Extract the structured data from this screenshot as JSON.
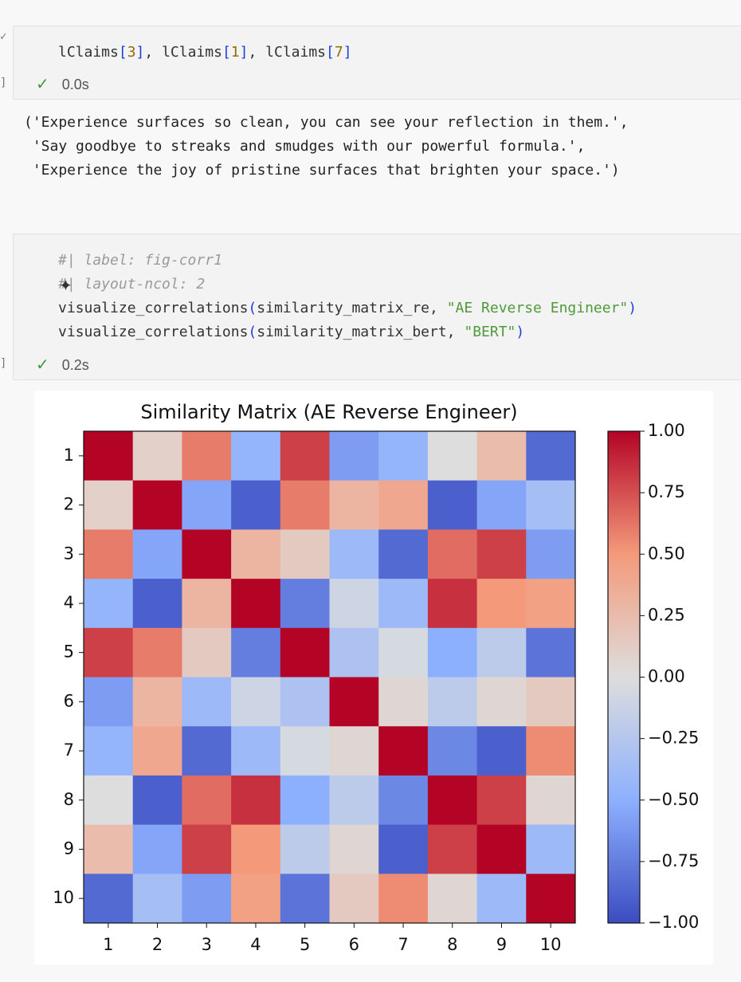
{
  "cells": [
    {
      "lines": [
        [
          {
            "text": "lClaims",
            "color": "#333333"
          },
          {
            "text": "[",
            "color": "#1f3fd8"
          },
          {
            "text": "3",
            "color": "#946c00"
          },
          {
            "text": "]",
            "color": "#1f3fd8"
          },
          {
            "text": ", lClaims",
            "color": "#333333"
          },
          {
            "text": "[",
            "color": "#1f3fd8"
          },
          {
            "text": "1",
            "color": "#946c00"
          },
          {
            "text": "]",
            "color": "#1f3fd8"
          },
          {
            "text": ", lClaims",
            "color": "#333333"
          },
          {
            "text": "[",
            "color": "#1f3fd8"
          },
          {
            "text": "7",
            "color": "#946c00"
          },
          {
            "text": "]",
            "color": "#1f3fd8"
          }
        ]
      ],
      "time": "0.0s",
      "output": [
        "('Experience surfaces so clean, you can see your reflection in them.',",
        " 'Say goodbye to streaks and smudges with our powerful formula.',",
        " 'Experience the joy of pristine surfaces that brighten your space.')"
      ]
    },
    {
      "lines": [
        [
          {
            "text": "#| label: fig-corr1",
            "color": "#9a9a9a",
            "style": "italic"
          }
        ],
        [
          {
            "text": "#| layout-ncol: 2",
            "color": "#9a9a9a",
            "style": "italic"
          }
        ],
        [
          {
            "text": "visualize_correlations",
            "color": "#333333"
          },
          {
            "text": "(",
            "color": "#1f3fd8"
          },
          {
            "text": "similarity_matrix_re, ",
            "color": "#333333"
          },
          {
            "text": "\"AE Reverse Engineer\"",
            "color": "#4f9a3a"
          },
          {
            "text": ")",
            "color": "#1f3fd8"
          }
        ],
        [
          {
            "text": "visualize_correlations",
            "color": "#333333"
          },
          {
            "text": "(",
            "color": "#1f3fd8"
          },
          {
            "text": "similarity_matrix_bert, ",
            "color": "#333333"
          },
          {
            "text": "\"BERT\"",
            "color": "#4f9a3a"
          },
          {
            "text": ")",
            "color": "#1f3fd8"
          }
        ]
      ],
      "time": "0.2s"
    }
  ],
  "chart_data": {
    "type": "heatmap",
    "title": "Similarity Matrix (AE Reverse Engineer)",
    "colormap": "coolwarm",
    "xticks": [
      1,
      2,
      3,
      4,
      5,
      6,
      7,
      8,
      9,
      10
    ],
    "yticks": [
      1,
      2,
      3,
      4,
      5,
      6,
      7,
      8,
      9,
      10
    ],
    "values": [
      [
        1,
        0.1,
        0.6,
        -0.45,
        0.8,
        -0.6,
        -0.45,
        0.0,
        0.25,
        -0.85
      ],
      [
        0.1,
        1,
        -0.55,
        -0.9,
        0.6,
        0.3,
        0.4,
        -0.9,
        -0.55,
        -0.35
      ],
      [
        0.6,
        -0.55,
        1,
        0.3,
        0.15,
        -0.4,
        -0.85,
        0.65,
        0.8,
        -0.6
      ],
      [
        -0.45,
        -0.9,
        0.3,
        1,
        -0.75,
        -0.1,
        -0.4,
        0.85,
        0.5,
        0.45
      ],
      [
        0.8,
        0.6,
        0.15,
        -0.75,
        1,
        -0.3,
        -0.05,
        -0.5,
        -0.2,
        -0.8
      ],
      [
        -0.6,
        0.3,
        -0.4,
        -0.1,
        -0.3,
        1,
        0.05,
        -0.2,
        0.05,
        0.15
      ],
      [
        -0.45,
        0.4,
        -0.85,
        -0.4,
        -0.05,
        0.05,
        1,
        -0.7,
        -0.9,
        0.55
      ],
      [
        0.0,
        -0.9,
        0.65,
        0.85,
        -0.5,
        -0.2,
        -0.7,
        1,
        0.8,
        0.05
      ],
      [
        0.25,
        -0.55,
        0.8,
        0.5,
        -0.2,
        0.05,
        -0.9,
        0.8,
        1,
        -0.4
      ],
      [
        -0.85,
        -0.35,
        -0.6,
        0.45,
        -0.8,
        0.15,
        0.55,
        0.05,
        -0.4,
        1
      ]
    ],
    "clim": [
      -1,
      1
    ],
    "cticks": [
      {
        "value": -1,
        "label": "−1.00"
      },
      {
        "value": -0.75,
        "label": "−0.75"
      },
      {
        "value": -0.5,
        "label": "−0.50"
      },
      {
        "value": -0.25,
        "label": "−0.25"
      },
      {
        "value": 0,
        "label": "0.00"
      },
      {
        "value": 0.25,
        "label": "0.25"
      },
      {
        "value": 0.5,
        "label": "0.50"
      },
      {
        "value": 0.75,
        "label": "0.75"
      },
      {
        "value": 1,
        "label": "1.00"
      }
    ]
  }
}
